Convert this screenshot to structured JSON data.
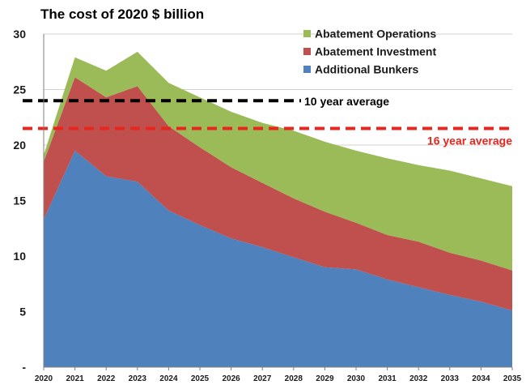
{
  "chart_data": {
    "type": "area",
    "stacked": true,
    "title": "The cost of 2020 $ billion",
    "xlabel": "",
    "ylabel": "",
    "x": [
      "2020",
      "2021",
      "2022",
      "2023",
      "2024",
      "2025",
      "2026",
      "2027",
      "2028",
      "2029",
      "2030",
      "2031",
      "2032",
      "2033",
      "2034",
      "2035"
    ],
    "ylim": [
      0,
      30
    ],
    "y_tick_labels": [
      "-",
      "5",
      "10",
      "15",
      "20",
      "25",
      "30"
    ],
    "grid": "horizontal",
    "legend_position": "top-right",
    "series": [
      {
        "name": "Additional Bunkers",
        "color": "#4f81bd",
        "values": [
          13.3,
          19.5,
          17.2,
          16.7,
          14.1,
          12.8,
          11.6,
          10.8,
          9.9,
          9.0,
          8.8,
          7.9,
          7.2,
          6.5,
          5.9,
          5.1
        ]
      },
      {
        "name": "Abatement Investment",
        "color": "#c0504d",
        "values": [
          5.2,
          6.6,
          7.1,
          8.6,
          7.6,
          7.0,
          6.4,
          5.8,
          5.3,
          5.0,
          4.2,
          4.0,
          4.1,
          3.8,
          3.7,
          3.6
        ]
      },
      {
        "name": "Abatement Operations",
        "color": "#9bbb59",
        "values": [
          0.6,
          1.8,
          2.4,
          3.1,
          3.9,
          4.5,
          5.0,
          5.4,
          6.1,
          6.3,
          6.5,
          6.9,
          6.9,
          7.4,
          7.4,
          7.6
        ]
      }
    ],
    "reference_lines": [
      {
        "label": "10 year average",
        "value": 24.0,
        "color": "#000000"
      },
      {
        "label": "16 year average",
        "value": 21.5,
        "color": "#e8261f"
      }
    ]
  }
}
